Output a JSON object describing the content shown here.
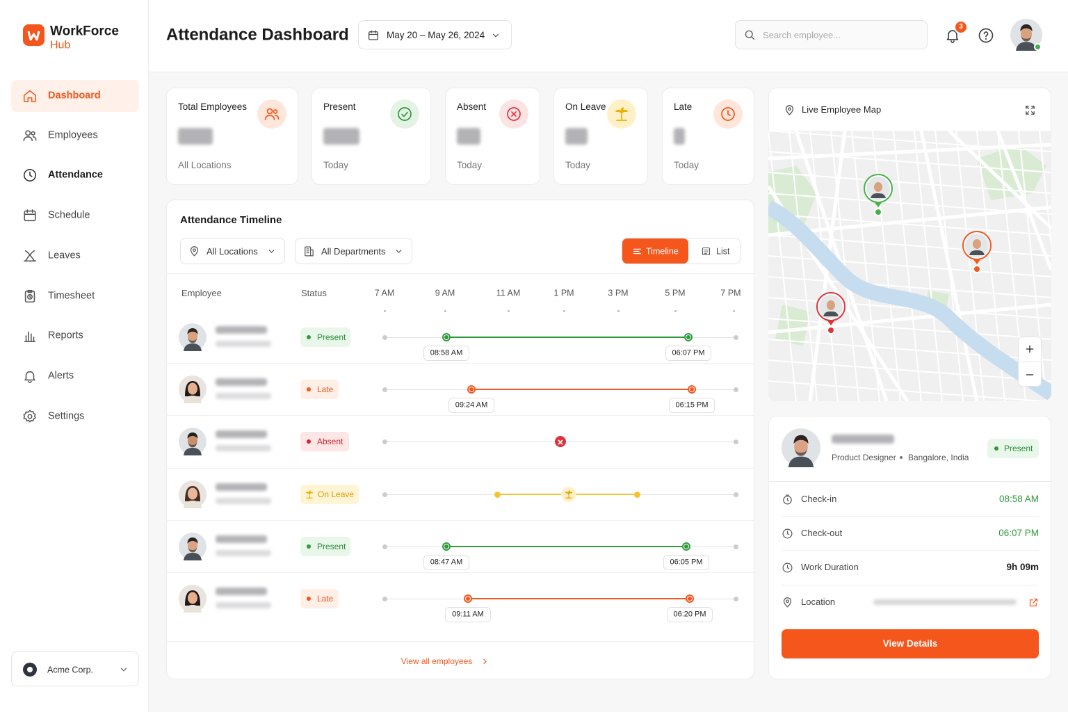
{
  "brand": {
    "name": "WorkForce",
    "sub": "Hub"
  },
  "nav": [
    "Dashboard",
    "Employees",
    "Attendance",
    "Schedule",
    "Leaves",
    "Timesheet",
    "Reports",
    "Alerts",
    "Settings"
  ],
  "org": "Acme Corp.",
  "header": {
    "title": "Attendance Dashboard",
    "date_range": "May 20 – May 26, 2024",
    "search_placeholder": "Search employee...",
    "notifications": "3"
  },
  "stats": [
    {
      "label": "Total Employees",
      "sub": "All Locations"
    },
    {
      "label": "Present",
      "sub": "Today"
    },
    {
      "label": "Absent",
      "sub": "Today"
    },
    {
      "label": "On Leave",
      "sub": "Today"
    },
    {
      "label": "Late",
      "sub": "Today"
    }
  ],
  "timeline": {
    "title": "Attendance Timeline",
    "filters": [
      "All Locations",
      "All Departments"
    ],
    "views": [
      "Timeline",
      "List"
    ],
    "columns": [
      "Employee",
      "Status"
    ],
    "hours": [
      "7 AM",
      "9 AM",
      "11 AM",
      "1 PM",
      "3 PM",
      "5 PM",
      "7 PM"
    ],
    "rows": [
      {
        "status": "Present",
        "check_in": "08:58 AM",
        "check_out": "06:07 PM"
      },
      {
        "status": "Late",
        "check_in": "09:24 AM",
        "check_out": "06:15 PM"
      },
      {
        "status": "Absent"
      },
      {
        "status": "On Leave"
      },
      {
        "status": "Present",
        "check_in": "08:47 AM",
        "check_out": "06:05 PM"
      },
      {
        "status": "Late",
        "check_in": "09:11 AM",
        "check_out": "06:20 PM"
      }
    ],
    "footer": "View all employees"
  },
  "map": {
    "title": "Live Employee Map"
  },
  "profile": {
    "role": "Product Designer",
    "location": "Bangalore, India",
    "status": "Present",
    "fields": [
      {
        "label": "Check-in",
        "value": "08:58 AM"
      },
      {
        "label": "Check-out",
        "value": "06:07 PM"
      },
      {
        "label": "Work Duration",
        "value": "9h 09m"
      },
      {
        "label": "Location"
      }
    ],
    "button": "View Details"
  }
}
